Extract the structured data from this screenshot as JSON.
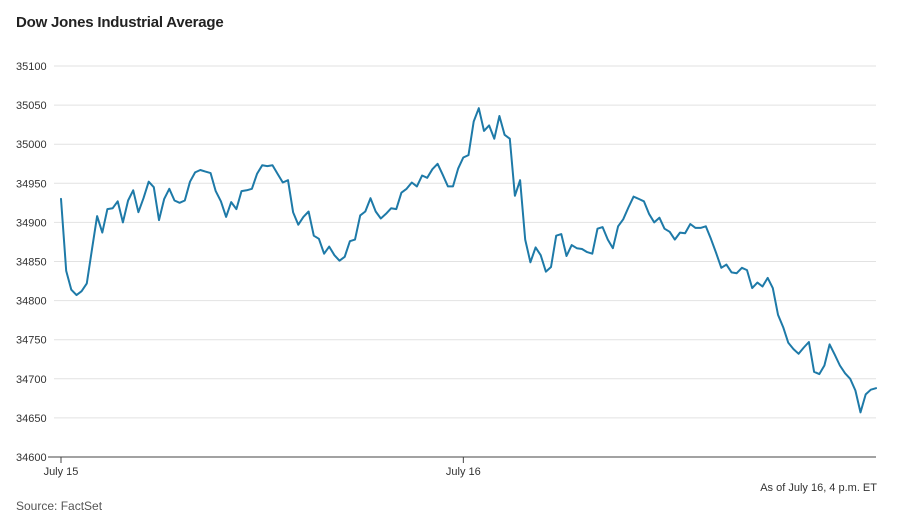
{
  "chart_data": {
    "type": "line",
    "title": "Dow Jones Industrial Average",
    "xlabel": "",
    "ylabel": "",
    "ylim": [
      34600,
      35100
    ],
    "yticks": [
      34600,
      34650,
      34700,
      34750,
      34800,
      34850,
      34900,
      34950,
      35000,
      35050,
      35100
    ],
    "x_tick_labels": [
      {
        "label": "July 15",
        "index": 0
      },
      {
        "label": "July 16",
        "index": 78
      }
    ],
    "grid": true,
    "line_color": "#1e7aa8",
    "series": [
      {
        "values": [
          34930,
          34838,
          34814,
          34807,
          34812,
          34822,
          34865,
          34908,
          34887,
          34917,
          34918,
          34927,
          34900,
          34928,
          34941,
          34913,
          34931,
          34952,
          34945,
          34903,
          34930,
          34943,
          34928,
          34925,
          34928,
          34952,
          34964,
          34967,
          34965,
          34963,
          34940,
          34927,
          34907,
          34926,
          34917,
          34940,
          34941,
          34943,
          34962,
          34973,
          34972,
          34973,
          34962,
          34951,
          34954,
          34913,
          34897,
          34907,
          34914,
          34883,
          34879,
          34860,
          34869,
          34858,
          34851,
          34856,
          34876,
          34878,
          34909,
          34914,
          34931,
          34914,
          34905,
          34911,
          34918,
          34917,
          34938,
          34943,
          34951,
          34946,
          34960,
          34957,
          34968,
          34975,
          34961,
          34946,
          34946,
          34969,
          34983,
          34986,
          35029,
          35046,
          35017,
          35024,
          35007,
          35036,
          35012,
          35007,
          34934,
          34954,
          34878,
          34849,
          34868,
          34858,
          34837,
          34843,
          34883,
          34885,
          34857,
          34871,
          34867,
          34866,
          34862,
          34860,
          34892,
          34894,
          34878,
          34867,
          34895,
          34904,
          34919,
          34933,
          34930,
          34927,
          34911,
          34900,
          34906,
          34892,
          34888,
          34878,
          34887,
          34886,
          34898,
          34893,
          34893,
          34895,
          34879,
          34861,
          34842,
          34846,
          34836,
          34835,
          34842,
          34839,
          34816,
          34823,
          34818,
          34829,
          34816,
          34782,
          34766,
          34746,
          34738,
          34732,
          34740,
          34747,
          34709,
          34706,
          34717,
          34744,
          34731,
          34717,
          34707,
          34700,
          34685,
          34657,
          34680,
          34686,
          34688
        ]
      }
    ]
  },
  "note": "As of July 16, 4 p.m. ET",
  "source": "Source: FactSet"
}
